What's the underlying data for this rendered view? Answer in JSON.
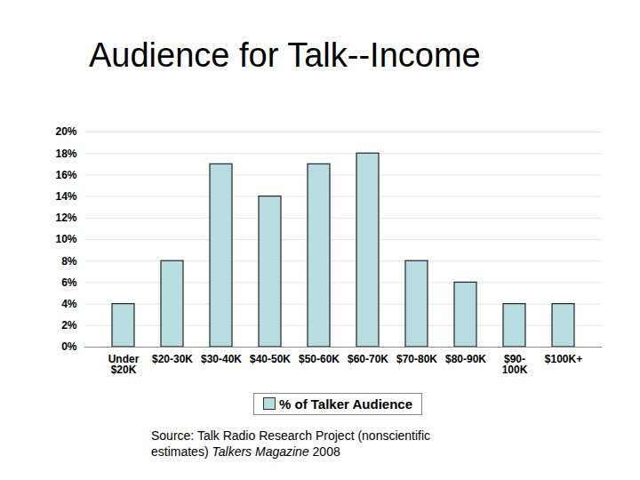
{
  "chart_data": {
    "type": "bar",
    "title": "Audience for Talk--Income",
    "categories": [
      "Under\n$20K",
      "$20-30K",
      "$30-40K",
      "$40-50K",
      "$50-60K",
      "$60-70K",
      "$70-80K",
      "$80-90K",
      "$90-\n100K",
      "$100K+"
    ],
    "series": [
      {
        "name": "% of Talker Audience",
        "color": "#b8dde1",
        "values": [
          4,
          8,
          17,
          14,
          17,
          18,
          8,
          6,
          4,
          4
        ]
      }
    ],
    "ylim": [
      0,
      20
    ],
    "yticks": [
      {
        "value": 0,
        "label": "0%"
      },
      {
        "value": 2,
        "label": "2%"
      },
      {
        "value": 4,
        "label": "4%"
      },
      {
        "value": 6,
        "label": "6%"
      },
      {
        "value": 8,
        "label": "8%"
      },
      {
        "value": 10,
        "label": "10%"
      },
      {
        "value": 12,
        "label": "12%"
      },
      {
        "value": 14,
        "label": "14%"
      },
      {
        "value": 16,
        "label": "16%"
      },
      {
        "value": 18,
        "label": "18%"
      },
      {
        "value": 20,
        "label": "20%"
      }
    ],
    "grid": true,
    "legend": "bottom",
    "source": "Source: Talk Radio Research Project (nonscientific estimates)",
    "source_publication": "Talkers Magazine",
    "source_year": "2008"
  }
}
